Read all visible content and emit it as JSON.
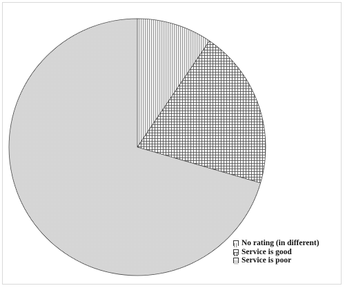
{
  "chart_data": {
    "type": "pie",
    "title": "",
    "slices": [
      {
        "label": "No rating (in different)",
        "value": 9.5,
        "pattern": "vertical-lines"
      },
      {
        "label": "Service is good",
        "value": 20.0,
        "pattern": "grid"
      },
      {
        "label": "Service is poor",
        "value": 70.5,
        "pattern": "fine-dots"
      }
    ],
    "start": "top",
    "direction": "clockwise",
    "legend_position": "bottom-right"
  },
  "colors": {
    "outline": "#4a4a4a",
    "frame": "#d9d9d9"
  }
}
